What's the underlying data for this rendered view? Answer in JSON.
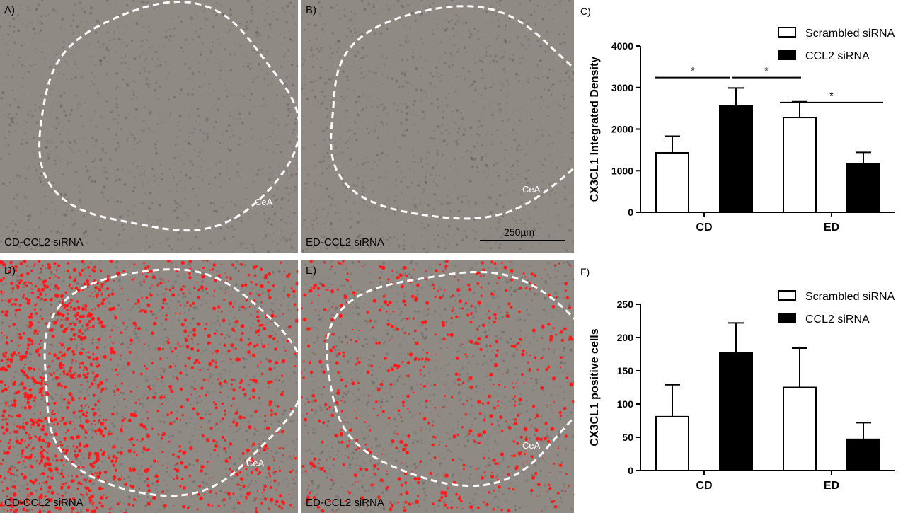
{
  "micrographs": [
    {
      "letter": "A)",
      "caption": "CD-CCL2 siRNA",
      "region": "CeA",
      "overlay": false
    },
    {
      "letter": "B)",
      "caption": "ED-CCL2 siRNA",
      "region": "CeA",
      "overlay": false,
      "scalebar": "250µm"
    },
    {
      "letter": "D)",
      "caption": "CD-CCL2 siRNA",
      "region": "CeA",
      "overlay": true,
      "overlay_density": "high"
    },
    {
      "letter": "E)",
      "caption": "ED-CCL2 siRNA",
      "region": "CeA",
      "overlay": true,
      "overlay_density": "low"
    }
  ],
  "colors": {
    "tissue": "#8f8a84",
    "overlay": "#ff1a1a",
    "outline": "#ffffff",
    "scrambled": "#ffffff",
    "ccl2": "#000000"
  },
  "chart_data": [
    {
      "letter": "C)",
      "type": "bar",
      "categories": [
        "CD",
        "ED"
      ],
      "ylabel": "CX3CL1 Integrated Density",
      "ylim": [
        0,
        4000
      ],
      "yticks": [
        0,
        1000,
        2000,
        3000,
        4000
      ],
      "series": [
        {
          "name": "Scrambled siRNA",
          "values": [
            1430,
            2280
          ],
          "errors": [
            400,
            380
          ]
        },
        {
          "name": "CCL2 siRNA",
          "values": [
            2570,
            1170
          ],
          "errors": [
            420,
            270
          ]
        }
      ],
      "significance": [
        {
          "from": [
            0,
            0
          ],
          "to": [
            0,
            1
          ],
          "label": "*"
        },
        {
          "from": [
            0,
            1
          ],
          "to": [
            1,
            0
          ],
          "label": "*"
        },
        {
          "from": [
            1,
            0
          ],
          "to": [
            1,
            1
          ],
          "label": "*"
        }
      ],
      "legend_position": "top-right"
    },
    {
      "letter": "F)",
      "type": "bar",
      "categories": [
        "CD",
        "ED"
      ],
      "ylabel": "CX3CL1 positive cells",
      "ylim": [
        0,
        250
      ],
      "yticks": [
        0,
        50,
        100,
        150,
        200,
        250
      ],
      "series": [
        {
          "name": "Scrambled siRNA",
          "values": [
            81,
            125
          ],
          "errors": [
            48,
            59
          ]
        },
        {
          "name": "CCL2 siRNA",
          "values": [
            177,
            47
          ],
          "errors": [
            45,
            25
          ]
        }
      ],
      "significance": [],
      "legend_position": "top-right"
    }
  ]
}
